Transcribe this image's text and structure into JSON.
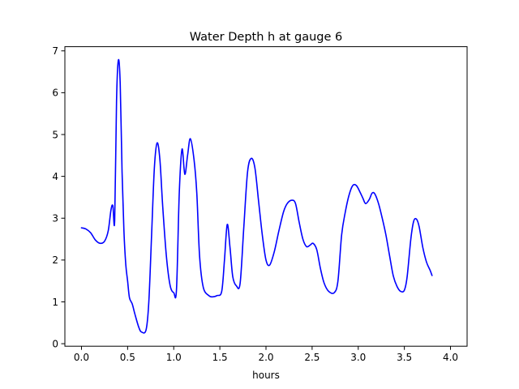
{
  "chart_data": {
    "type": "line",
    "title": "Water Depth h at gauge 6",
    "xlabel": "hours",
    "ylabel": "",
    "xlim": [
      -0.18,
      4.18
    ],
    "ylim": [
      -0.06,
      7.1
    ],
    "xticks": [
      0.0,
      0.5,
      1.0,
      1.5,
      2.0,
      2.5,
      3.0,
      3.5,
      4.0
    ],
    "xtick_labels": [
      "0.0",
      "0.5",
      "1.0",
      "1.5",
      "2.0",
      "2.5",
      "3.0",
      "3.5",
      "4.0"
    ],
    "yticks": [
      0,
      1,
      2,
      3,
      4,
      5,
      6,
      7
    ],
    "ytick_labels": [
      "0",
      "1",
      "2",
      "3",
      "4",
      "5",
      "6",
      "7"
    ],
    "grid": false,
    "series": [
      {
        "color": "#0000ff",
        "points": [
          [
            0.0,
            2.77
          ],
          [
            0.05,
            2.74
          ],
          [
            0.1,
            2.65
          ],
          [
            0.15,
            2.48
          ],
          [
            0.2,
            2.4
          ],
          [
            0.25,
            2.45
          ],
          [
            0.29,
            2.7
          ],
          [
            0.32,
            3.2
          ],
          [
            0.34,
            3.3
          ],
          [
            0.36,
            2.95
          ],
          [
            0.38,
            5.8
          ],
          [
            0.4,
            6.78
          ],
          [
            0.42,
            6.2
          ],
          [
            0.44,
            4.1
          ],
          [
            0.46,
            2.7
          ],
          [
            0.48,
            1.9
          ],
          [
            0.5,
            1.5
          ],
          [
            0.52,
            1.1
          ],
          [
            0.55,
            0.95
          ],
          [
            0.58,
            0.7
          ],
          [
            0.62,
            0.4
          ],
          [
            0.65,
            0.28
          ],
          [
            0.7,
            0.33
          ],
          [
            0.73,
            1.0
          ],
          [
            0.76,
            2.6
          ],
          [
            0.79,
            4.2
          ],
          [
            0.82,
            4.8
          ],
          [
            0.85,
            4.4
          ],
          [
            0.88,
            3.3
          ],
          [
            0.92,
            2.1
          ],
          [
            0.96,
            1.4
          ],
          [
            1.0,
            1.22
          ],
          [
            1.03,
            1.3
          ],
          [
            1.06,
            3.6
          ],
          [
            1.09,
            4.65
          ],
          [
            1.12,
            4.05
          ],
          [
            1.15,
            4.5
          ],
          [
            1.18,
            4.9
          ],
          [
            1.22,
            4.4
          ],
          [
            1.25,
            3.6
          ],
          [
            1.28,
            2.1
          ],
          [
            1.32,
            1.35
          ],
          [
            1.38,
            1.15
          ],
          [
            1.42,
            1.12
          ],
          [
            1.47,
            1.15
          ],
          [
            1.52,
            1.25
          ],
          [
            1.55,
            2.0
          ],
          [
            1.58,
            2.85
          ],
          [
            1.61,
            2.3
          ],
          [
            1.64,
            1.6
          ],
          [
            1.68,
            1.38
          ],
          [
            1.72,
            1.45
          ],
          [
            1.76,
            2.8
          ],
          [
            1.8,
            4.1
          ],
          [
            1.84,
            4.43
          ],
          [
            1.88,
            4.2
          ],
          [
            1.92,
            3.4
          ],
          [
            1.96,
            2.6
          ],
          [
            2.0,
            2.0
          ],
          [
            2.04,
            1.88
          ],
          [
            2.09,
            2.2
          ],
          [
            2.14,
            2.7
          ],
          [
            2.19,
            3.15
          ],
          [
            2.23,
            3.35
          ],
          [
            2.28,
            3.43
          ],
          [
            2.32,
            3.35
          ],
          [
            2.36,
            2.9
          ],
          [
            2.4,
            2.5
          ],
          [
            2.44,
            2.32
          ],
          [
            2.48,
            2.36
          ],
          [
            2.51,
            2.4
          ],
          [
            2.55,
            2.25
          ],
          [
            2.59,
            1.8
          ],
          [
            2.63,
            1.45
          ],
          [
            2.68,
            1.25
          ],
          [
            2.74,
            1.22
          ],
          [
            2.78,
            1.5
          ],
          [
            2.82,
            2.6
          ],
          [
            2.86,
            3.15
          ],
          [
            2.9,
            3.55
          ],
          [
            2.94,
            3.78
          ],
          [
            2.98,
            3.78
          ],
          [
            3.02,
            3.62
          ],
          [
            3.05,
            3.48
          ],
          [
            3.08,
            3.35
          ],
          [
            3.12,
            3.45
          ],
          [
            3.15,
            3.6
          ],
          [
            3.18,
            3.58
          ],
          [
            3.22,
            3.35
          ],
          [
            3.26,
            3.0
          ],
          [
            3.3,
            2.6
          ],
          [
            3.34,
            2.1
          ],
          [
            3.38,
            1.62
          ],
          [
            3.42,
            1.37
          ],
          [
            3.46,
            1.25
          ],
          [
            3.5,
            1.28
          ],
          [
            3.53,
            1.6
          ],
          [
            3.57,
            2.5
          ],
          [
            3.6,
            2.92
          ],
          [
            3.63,
            2.98
          ],
          [
            3.66,
            2.8
          ],
          [
            3.7,
            2.3
          ],
          [
            3.74,
            1.95
          ],
          [
            3.78,
            1.75
          ],
          [
            3.8,
            1.63
          ]
        ]
      }
    ]
  }
}
